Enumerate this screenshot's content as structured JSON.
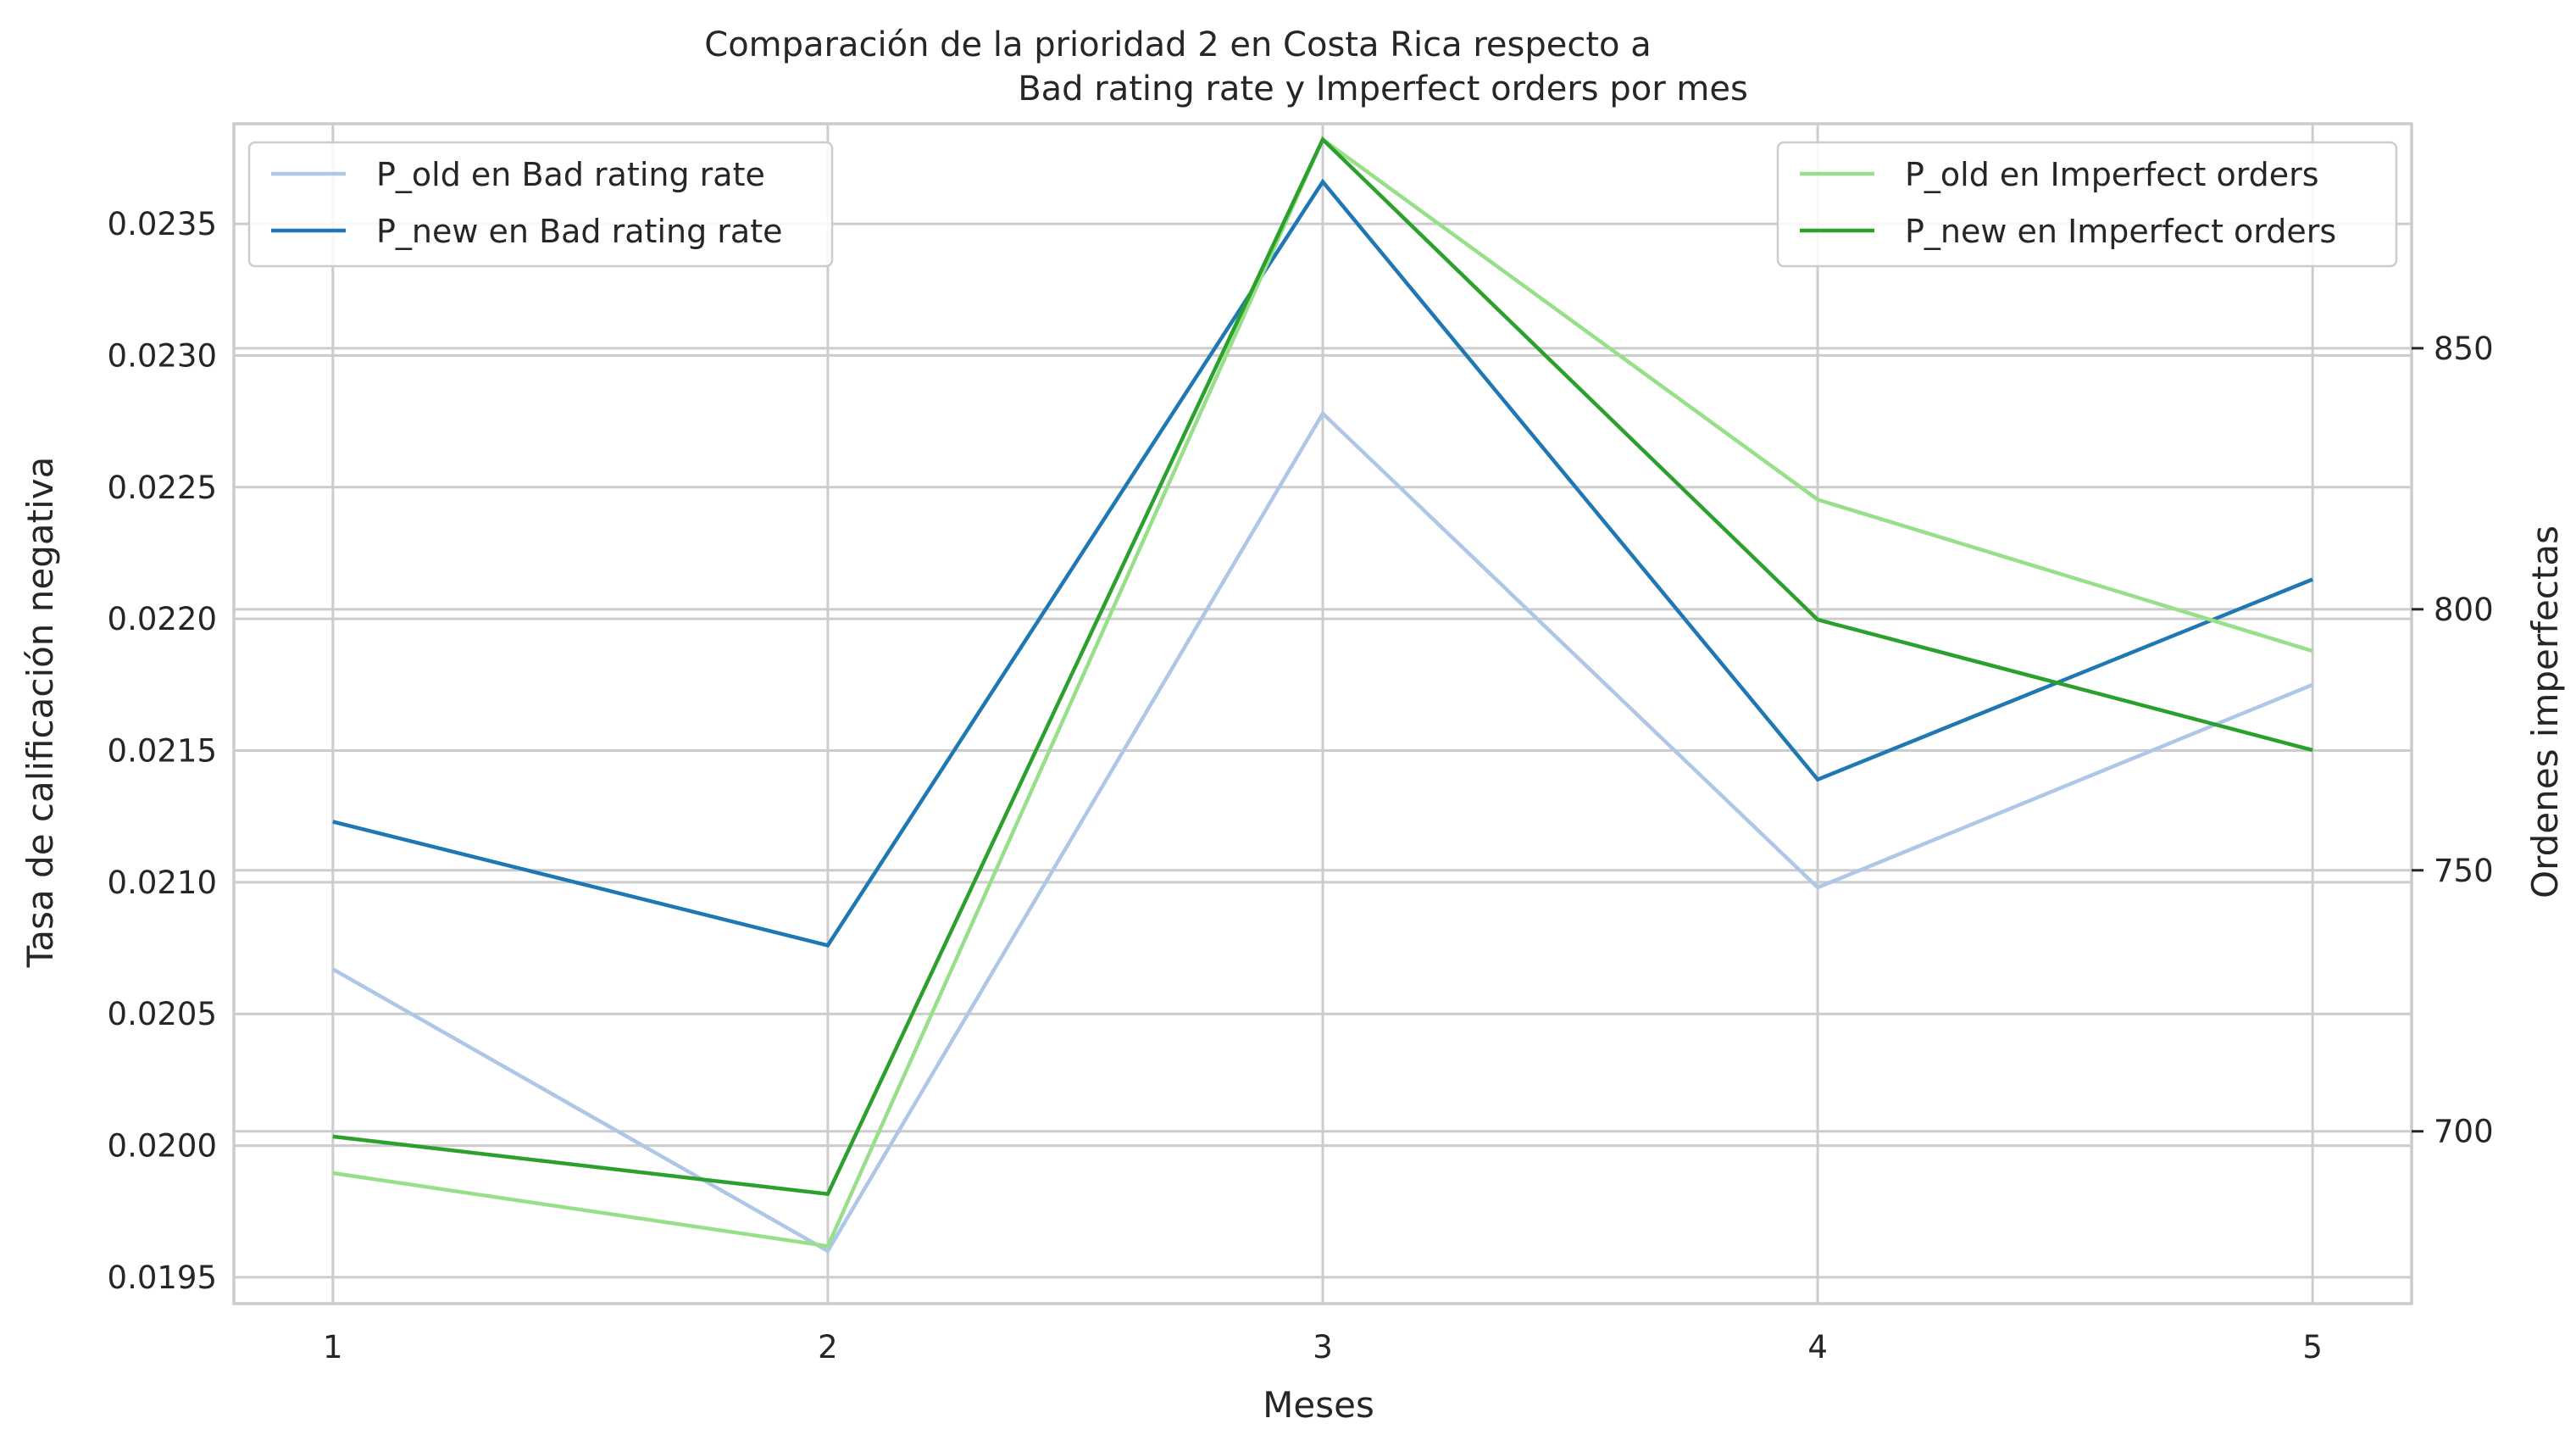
{
  "chart_data": {
    "type": "line",
    "title_line1": "Comparación de la prioridad 2 en Costa Rica respecto a",
    "title_line2": "Bad rating rate y Imperfect orders por mes",
    "xlabel": "Meses",
    "ylabel_left": "Tasa de calificación negativa",
    "ylabel_right": "Ordenes imperfectas",
    "x": [
      1,
      2,
      3,
      4,
      5
    ],
    "xlim": [
      0.8,
      5.2
    ],
    "ylim_left": [
      0.0194,
      0.02388
    ],
    "ylim_right": [
      667,
      893
    ],
    "yticks_left": [
      0.0195,
      0.02,
      0.0205,
      0.021,
      0.0215,
      0.022,
      0.0225,
      0.023,
      0.0235
    ],
    "ytick_labels_left": [
      "0.0195",
      "0.0200",
      "0.0205",
      "0.0210",
      "0.0215",
      "0.0220",
      "0.0225",
      "0.0230",
      "0.0235"
    ],
    "yticks_right": [
      700,
      750,
      800,
      850
    ],
    "ytick_labels_right": [
      "700",
      "750",
      "800",
      "850"
    ],
    "grid": true,
    "series_left": [
      {
        "name": "P_old en Bad rating rate",
        "color": "#aec7e8",
        "values": [
          0.02067,
          0.0196,
          0.02278,
          0.02098,
          0.02175
        ]
      },
      {
        "name": "P_new en Bad rating rate",
        "color": "#1f77b4",
        "values": [
          0.02123,
          0.02076,
          0.02366,
          0.02139,
          0.02215
        ]
      }
    ],
    "series_right": [
      {
        "name": "P_old en Imperfect orders",
        "color": "#98df8a",
        "values": [
          692,
          678,
          890,
          821,
          792
        ]
      },
      {
        "name": "P_new en Imperfect orders",
        "color": "#2ca02c",
        "values": [
          699,
          688,
          890,
          798,
          773
        ]
      }
    ],
    "legend_left_placement": "upper-left",
    "legend_right_placement": "upper-right"
  }
}
